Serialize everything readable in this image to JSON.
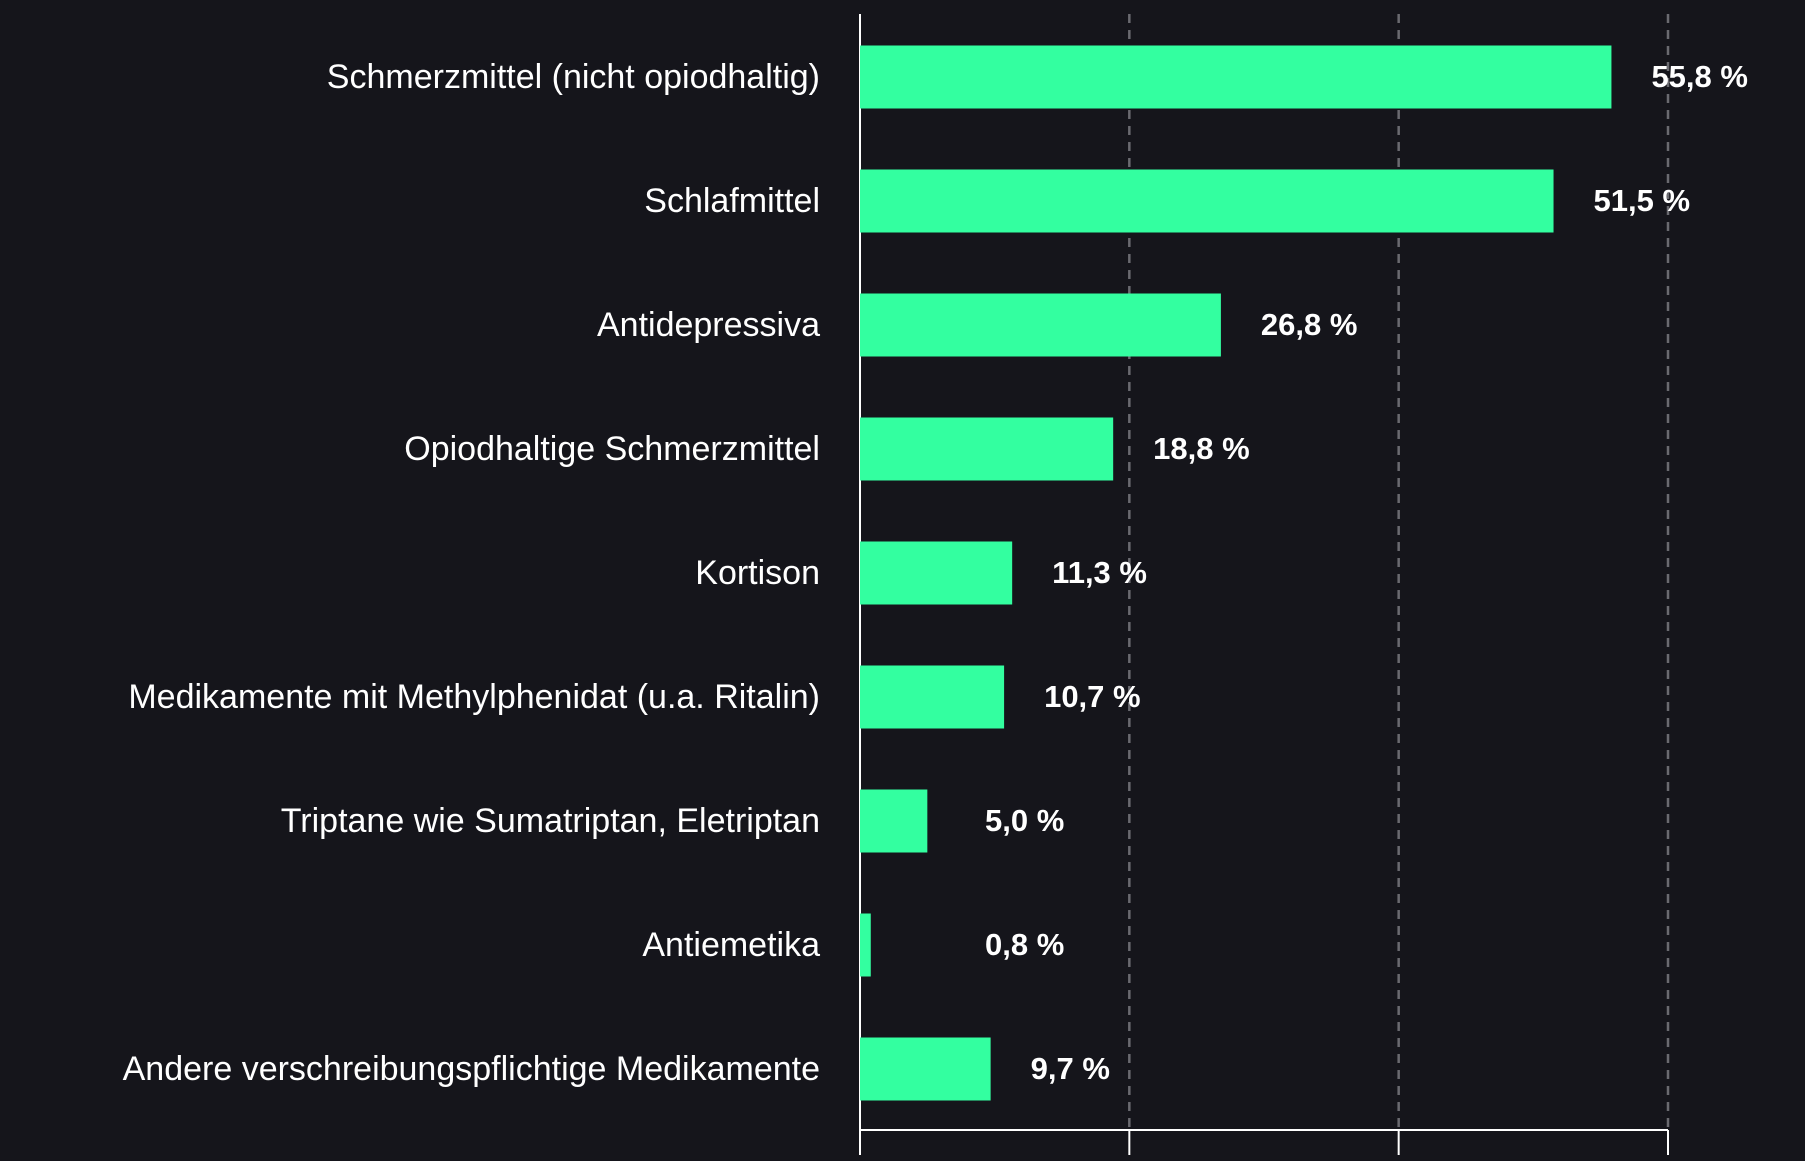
{
  "chart_data": {
    "type": "hbar",
    "categories": [
      "Schmerzmittel (nicht opiodhaltig)",
      "Schlafmittel",
      "Antidepressiva",
      "Opiodhaltige Schmerzmittel",
      "Kortison",
      "Medikamente mit Methylphenidat (u.a. Ritalin)",
      "Triptane wie Sumatriptan, Eletriptan",
      "Antiemetika",
      "Andere verschreibungspflichtige Medikamente"
    ],
    "values": [
      55.8,
      51.5,
      26.8,
      18.8,
      11.3,
      10.7,
      5.0,
      0.8,
      9.7
    ],
    "value_labels": [
      "55,8 %",
      "51,5 %",
      "26,8 %",
      "18,8 %",
      "11,3 %",
      "10,7 %",
      "5,0 %",
      "0,8 %",
      "9,7 %"
    ],
    "color": "#33ffa0",
    "xlim": [
      0,
      60
    ],
    "xticks": [
      0,
      20,
      40,
      60
    ],
    "grid": true
  }
}
